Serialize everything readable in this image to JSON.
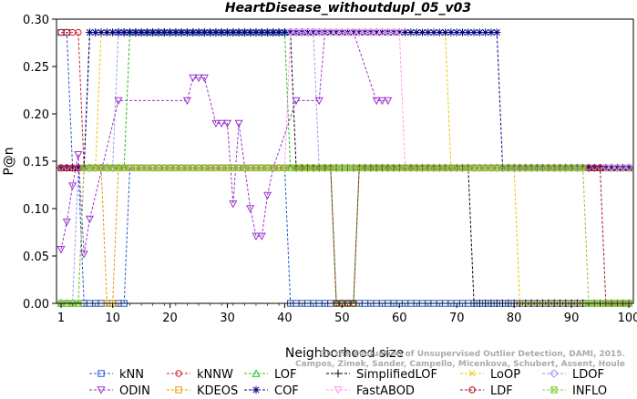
{
  "chart_data": {
    "type": "line",
    "title": "HeartDisease_withoutdupl_05_v03",
    "xlabel": "Neighborhood size",
    "ylabel": "P@n",
    "xlim": [
      1,
      100
    ],
    "ylim": [
      0,
      0.3
    ],
    "x_ticks": [
      1,
      10,
      20,
      30,
      40,
      50,
      60,
      70,
      80,
      90,
      100
    ],
    "y_ticks": [
      0.0,
      0.05,
      0.1,
      0.15,
      0.2,
      0.25,
      0.3
    ],
    "y_tick_labels": [
      "0.00",
      "0.05",
      "0.10",
      "0.15",
      "0.20",
      "0.25",
      "0.30"
    ],
    "grid": false,
    "legend_position": "bottom",
    "watermark": [
      "Campos, Zimek, Sander, Campello, Micenkova, Schubert, Assent, Houle",
      "On the Evaluation of Unsupervised Outlier Detection, DAMI, 2015."
    ],
    "series": [
      {
        "name": "kNN",
        "color": "#2255cc",
        "marker": "square",
        "segments": [
          [
            1,
            2,
            0.286
          ],
          [
            3,
            4,
            0.143
          ],
          [
            5,
            12,
            0.0
          ],
          [
            13,
            40,
            0.143
          ],
          [
            41,
            100,
            0.0
          ]
        ]
      },
      {
        "name": "kNNW",
        "color": "#cc2222",
        "marker": "circle",
        "segments": [
          [
            1,
            4,
            0.286
          ],
          [
            5,
            20,
            0.143
          ],
          [
            21,
            100,
            0.143
          ]
        ]
      },
      {
        "name": "LOF",
        "color": "#22bb22",
        "marker": "triangle-up",
        "segments": [
          [
            1,
            4,
            0.0
          ],
          [
            5,
            12,
            0.143
          ],
          [
            13,
            40,
            0.286
          ],
          [
            41,
            48,
            0.143
          ],
          [
            49,
            52,
            0.0
          ],
          [
            53,
            100,
            0.143
          ]
        ]
      },
      {
        "name": "SimplifiedLOF",
        "color": "#000000",
        "marker": "plus",
        "segments": [
          [
            1,
            5,
            0.143
          ],
          [
            6,
            41,
            0.286
          ],
          [
            42,
            72,
            0.143
          ],
          [
            73,
            100,
            0.0
          ]
        ]
      },
      {
        "name": "LoOP",
        "color": "#e6c800",
        "marker": "x",
        "segments": [
          [
            1,
            7,
            0.143
          ],
          [
            8,
            68,
            0.286
          ],
          [
            69,
            80,
            0.143
          ],
          [
            81,
            100,
            0.0
          ]
        ]
      },
      {
        "name": "LDOF",
        "color": "#9999ee",
        "marker": "diamond",
        "segments": [
          [
            1,
            3,
            0.0
          ],
          [
            4,
            10,
            0.143
          ],
          [
            11,
            45,
            0.286
          ],
          [
            46,
            100,
            0.143
          ]
        ]
      },
      {
        "name": "ODIN",
        "color": "#9933cc",
        "marker": "triangle-down",
        "values": [
          [
            1,
            0.057
          ],
          [
            2,
            0.086
          ],
          [
            3,
            0.124
          ],
          [
            4,
            0.157
          ],
          [
            5,
            0.052
          ],
          [
            6,
            0.089
          ],
          [
            11,
            0.214
          ],
          [
            23,
            0.214
          ],
          [
            24,
            0.238
          ],
          [
            25,
            0.238
          ],
          [
            26,
            0.238
          ],
          [
            28,
            0.19
          ],
          [
            29,
            0.19
          ],
          [
            30,
            0.19
          ],
          [
            31,
            0.105
          ],
          [
            32,
            0.19
          ],
          [
            34,
            0.1
          ],
          [
            35,
            0.071
          ],
          [
            36,
            0.071
          ],
          [
            37,
            0.114
          ],
          [
            38,
            0.143
          ],
          [
            42,
            0.214
          ],
          [
            46,
            0.214
          ],
          [
            47,
            0.286
          ],
          [
            52,
            0.286
          ],
          [
            56,
            0.214
          ],
          [
            57,
            0.214
          ],
          [
            58,
            0.214
          ]
        ]
      },
      {
        "name": "KDEOS",
        "color": "#e69900",
        "marker": "square",
        "segments": [
          [
            1,
            8,
            0.143
          ],
          [
            9,
            10,
            0.0
          ],
          [
            11,
            100,
            0.143
          ]
        ]
      },
      {
        "name": "COF",
        "color": "#000088",
        "marker": "star",
        "segments": [
          [
            1,
            5,
            0.143
          ],
          [
            6,
            77,
            0.286
          ],
          [
            78,
            100,
            0.143
          ]
        ]
      },
      {
        "name": "FastABOD",
        "color": "#ff99ee",
        "marker": "triangle-down",
        "segments": [
          [
            1,
            40,
            0.143
          ],
          [
            41,
            60,
            0.286
          ],
          [
            61,
            100,
            0.143
          ]
        ]
      },
      {
        "name": "LDF",
        "color": "#aa1111",
        "marker": "circle",
        "segments": [
          [
            1,
            48,
            0.143
          ],
          [
            49,
            52,
            0.0
          ],
          [
            53,
            95,
            0.143
          ],
          [
            96,
            100,
            0.0
          ]
        ]
      },
      {
        "name": "INFLO",
        "color": "#88cc33",
        "marker": "square-x",
        "segments": [
          [
            1,
            4,
            0.0
          ],
          [
            5,
            40,
            0.143
          ],
          [
            41,
            92,
            0.143
          ],
          [
            93,
            100,
            0.0
          ]
        ]
      }
    ]
  }
}
